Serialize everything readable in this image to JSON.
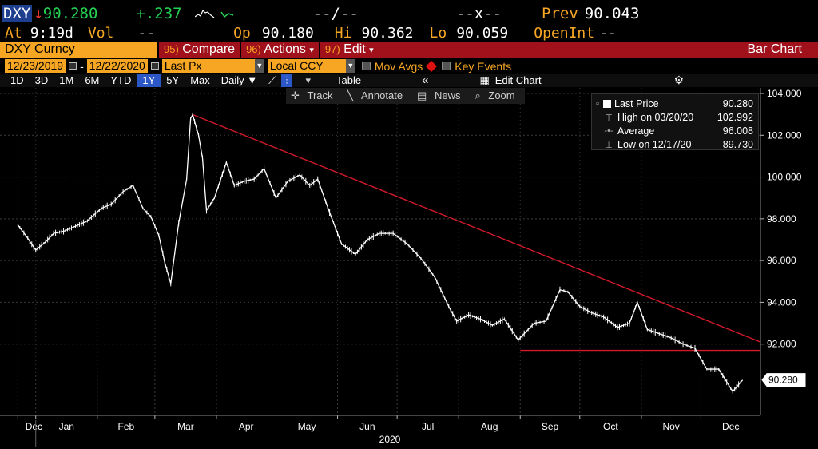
{
  "ticker": {
    "symbol": "DXY",
    "last_price": "90.280",
    "change": "+.237",
    "bid_ask": "--/--",
    "size_label": "--x--",
    "prev_label": "Prev",
    "prev_value": "90.043"
  },
  "quote_row": {
    "at_label": "At",
    "time": "9:19d",
    "vol_label": "Vol",
    "vol_value": "--",
    "open_label": "Op",
    "open_value": "90.180",
    "high_label": "Hi",
    "high_value": "90.362",
    "low_label": "Lo",
    "low_value": "90.059",
    "openint_label": "OpenInt",
    "openint_value": "--"
  },
  "command_bar": {
    "security": "DXY Curncy",
    "compare": {
      "num": "95)",
      "label": "Compare"
    },
    "actions": {
      "num": "96)",
      "label": "Actions"
    },
    "edit": {
      "num": "97)",
      "label": "Edit"
    },
    "title": "Bar Chart"
  },
  "date_row": {
    "start_date": "12/23/2019",
    "end_date": "12/22/2020",
    "field": "Last Px",
    "currency": "Local CCY",
    "mov_avgs": "Mov Avgs",
    "key_events": "Key Events"
  },
  "range_row": {
    "ranges": [
      "1D",
      "3D",
      "1M",
      "6M",
      "YTD",
      "1Y",
      "5Y",
      "Max"
    ],
    "active_range": "1Y",
    "periodicity": "Daily",
    "table_label": "Table",
    "edit_chart_label": "Edit Chart"
  },
  "chart_toolbar": {
    "track": "Track",
    "annotate": "Annotate",
    "news": "News",
    "zoom": "Zoom"
  },
  "legend": {
    "last_price_label": "Last Price",
    "last_price_value": "90.280",
    "high_label": "High on 03/20/20",
    "high_value": "102.992",
    "average_label": "Average",
    "average_value": "96.008",
    "low_label": "Low on 12/17/20",
    "low_value": "89.730"
  },
  "colors": {
    "background": "#000000",
    "amber": "#f6a623",
    "command_bar": "#a0111b",
    "price_line": "#ffffff",
    "trendline": "#d11a2a",
    "active_button": "#2c57c7",
    "change_positive": "#25d353"
  },
  "chart_data": {
    "type": "line",
    "xlabel": "2020",
    "ylabel": "",
    "ylim": [
      90.0,
      104.0
    ],
    "y_ticks": [
      "104.000",
      "102.000",
      "100.000",
      "98.000",
      "96.000",
      "94.000",
      "92.000"
    ],
    "y_tick_values": [
      104,
      102,
      100,
      98,
      96,
      94,
      92
    ],
    "x_ticks": [
      "Dec",
      "Jan",
      "Feb",
      "Mar",
      "Apr",
      "May",
      "Jun",
      "Jul",
      "Aug",
      "Sep",
      "Oct",
      "Nov",
      "Dec"
    ],
    "x_tick_dates": [
      "2019-12-23",
      "2020-01-01",
      "2020-02-01",
      "2020-03-01",
      "2020-04-01",
      "2020-05-01",
      "2020-06-01",
      "2020-07-01",
      "2020-08-01",
      "2020-09-01",
      "2020-10-01",
      "2020-11-01",
      "2020-12-01"
    ],
    "last_price_tag": "90.280",
    "series": [
      {
        "x": [
          "2019-12-23",
          "2019-12-27",
          "2020-01-01",
          "2020-01-06",
          "2020-01-10",
          "2020-01-15",
          "2020-01-20",
          "2020-01-27",
          "2020-02-03",
          "2020-02-08",
          "2020-02-14",
          "2020-02-19",
          "2020-02-24",
          "2020-02-28",
          "2020-03-03",
          "2020-03-06",
          "2020-03-09",
          "2020-03-13",
          "2020-03-17",
          "2020-03-19",
          "2020-03-20",
          "2020-03-23",
          "2020-03-25",
          "2020-03-27",
          "2020-03-31",
          "2020-04-06",
          "2020-04-10",
          "2020-04-15",
          "2020-04-20",
          "2020-04-25",
          "2020-05-01",
          "2020-05-07",
          "2020-05-13",
          "2020-05-18",
          "2020-05-22",
          "2020-05-28",
          "2020-06-03",
          "2020-06-10",
          "2020-06-16",
          "2020-06-22",
          "2020-06-29",
          "2020-07-06",
          "2020-07-13",
          "2020-07-20",
          "2020-07-27",
          "2020-07-31",
          "2020-08-06",
          "2020-08-12",
          "2020-08-18",
          "2020-08-24",
          "2020-08-31",
          "2020-09-08",
          "2020-09-14",
          "2020-09-21",
          "2020-09-25",
          "2020-10-01",
          "2020-10-07",
          "2020-10-13",
          "2020-10-20",
          "2020-10-26",
          "2020-10-30",
          "2020-11-04",
          "2020-11-10",
          "2020-11-16",
          "2020-11-22",
          "2020-11-28",
          "2020-12-04",
          "2020-12-10",
          "2020-12-17",
          "2020-12-22"
        ],
        "y": [
          97.7,
          97.2,
          96.5,
          96.9,
          97.3,
          97.4,
          97.6,
          97.9,
          98.5,
          98.7,
          99.3,
          99.6,
          98.5,
          98.1,
          97.2,
          95.9,
          94.9,
          97.8,
          99.9,
          102.8,
          102.99,
          102.0,
          100.9,
          98.4,
          99.0,
          100.7,
          99.6,
          99.8,
          99.9,
          100.4,
          99.0,
          99.8,
          100.1,
          99.6,
          99.9,
          98.3,
          96.8,
          96.3,
          97.0,
          97.3,
          97.3,
          96.8,
          96.1,
          95.2,
          93.8,
          93.1,
          93.4,
          93.2,
          92.9,
          93.2,
          92.2,
          93.0,
          93.1,
          94.6,
          94.5,
          93.8,
          93.5,
          93.3,
          92.8,
          93.0,
          94.0,
          92.7,
          92.5,
          92.3,
          92.0,
          91.8,
          90.8,
          90.8,
          89.73,
          90.28
        ]
      }
    ],
    "trendlines": [
      {
        "x": [
          "2020-03-20",
          "2020-12-31"
        ],
        "y": [
          102.99,
          92.1
        ]
      },
      {
        "x": [
          "2020-09-01",
          "2020-12-31"
        ],
        "y": [
          91.7,
          91.7
        ]
      }
    ]
  }
}
